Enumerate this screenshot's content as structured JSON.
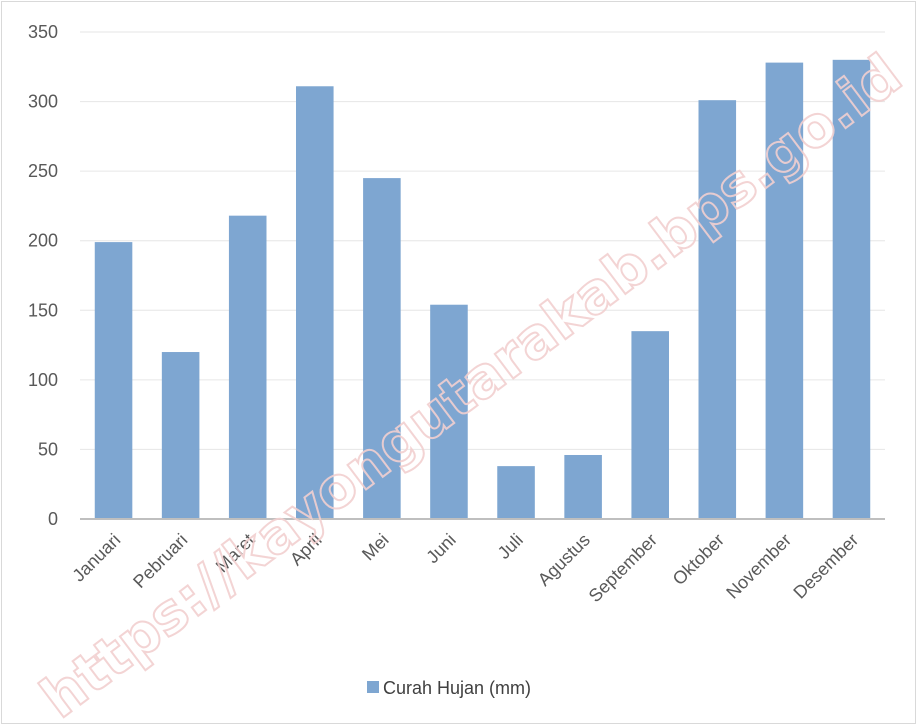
{
  "watermark": "https://kayongutarakab.bps.go.id",
  "colors": {
    "bar": "#7ea6d1",
    "grid": "#e6e6e6",
    "axis": "#bfbfbf"
  },
  "chart_data": {
    "type": "bar",
    "categories": [
      "Januari",
      "Pebruari",
      "Maret",
      "April",
      "Mei",
      "Juni",
      "Juli",
      "Agustus",
      "September",
      "Oktober",
      "November",
      "Desember"
    ],
    "series": [
      {
        "name": "Curah Hujan (mm)",
        "values": [
          199,
          120,
          218,
          311,
          245,
          154,
          38,
          46,
          135,
          301,
          328,
          330
        ]
      }
    ],
    "ylim": [
      0,
      350
    ],
    "yticks": [
      0,
      50,
      100,
      150,
      200,
      250,
      300,
      350
    ],
    "grid": true,
    "legend": "bottom"
  }
}
